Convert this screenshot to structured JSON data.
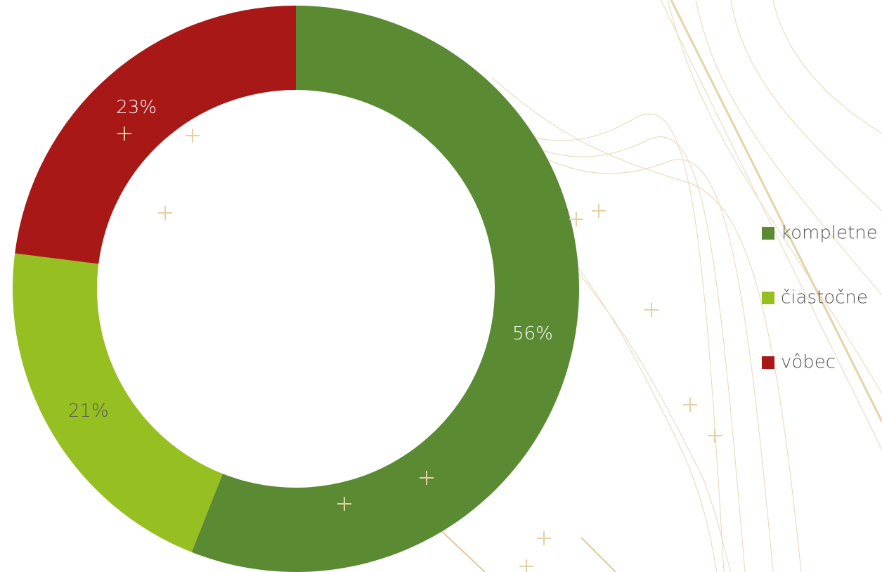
{
  "chart_data": {
    "type": "donut",
    "categories": [
      "kompletne",
      "čiastočne",
      "vôbec"
    ],
    "values": [
      56,
      21,
      23
    ],
    "value_labels": [
      "56%",
      "21%",
      "23%"
    ],
    "colors": [
      "#5a8a32",
      "#96bf22",
      "#a81816"
    ],
    "legend": "right"
  }
}
